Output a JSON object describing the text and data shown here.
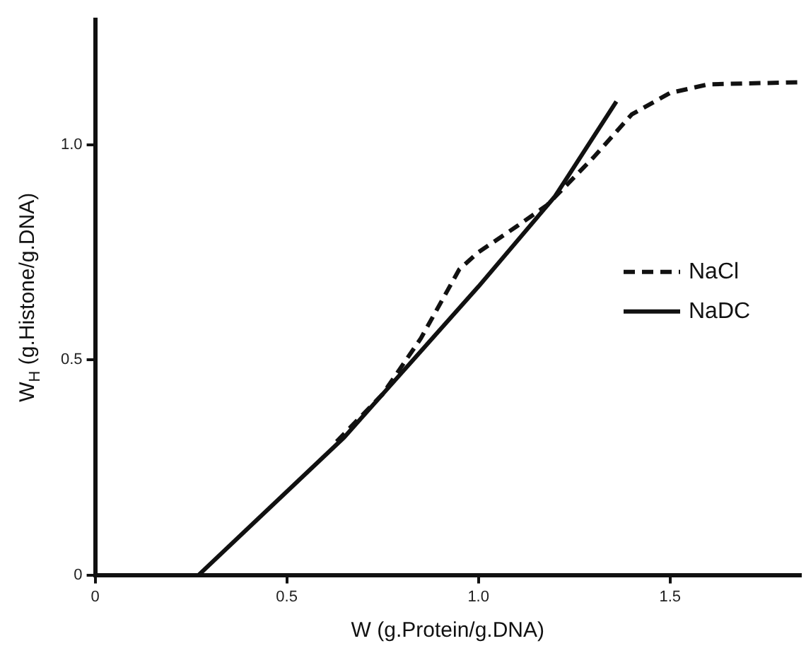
{
  "chart_data": {
    "type": "line",
    "xlabel": "W (g.Protein/g.DNA)",
    "ylabel": "W$_{H}$ (g.Histone/g.DNA)",
    "xlim": [
      0,
      1.84
    ],
    "xticks": [
      0,
      0.5,
      {
        "value": 1,
        "label": "1.0"
      },
      1.5
    ],
    "ylim": [
      0,
      1.29
    ],
    "yticks": [
      0,
      0.5,
      {
        "value": 1,
        "label": "1.0"
      }
    ],
    "grid": false,
    "legend": "right",
    "marker": "none",
    "series": [
      {
        "name": "NaCl",
        "color": "#111111",
        "line_style": "dashed",
        "x": [
          0.63,
          0.75,
          0.85,
          0.95,
          1.0,
          1.1,
          1.18,
          1.3,
          1.4,
          1.5,
          1.6,
          1.84
        ],
        "values": [
          0.31,
          0.42,
          0.55,
          0.71,
          0.75,
          0.81,
          0.86,
          0.97,
          1.07,
          1.12,
          1.14,
          1.145
        ]
      },
      {
        "name": "NaDC",
        "color": "#111111",
        "line_style": "solid",
        "x": [
          0.27,
          0.65,
          0.8,
          1.0,
          1.2,
          1.36
        ],
        "values": [
          0,
          0.32,
          0.47,
          0.67,
          0.88,
          1.1
        ]
      }
    ]
  }
}
